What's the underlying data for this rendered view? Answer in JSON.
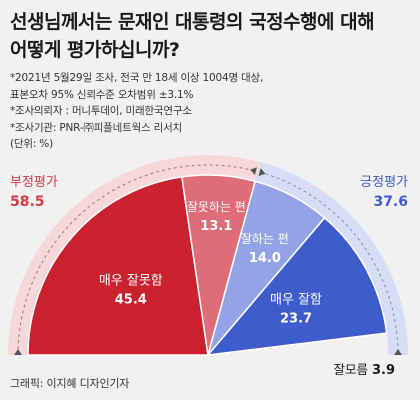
{
  "title_lines": [
    "선생님께서는 문재인 대통령의 국정수행에 대해",
    "어떻게 평가하십니까?"
  ],
  "notes": [
    "*2021년 5월29일 조사, 전국 만 18세 이상 1004명 대상,",
    "표본오차 95% 신뢰수준 오차범위 ±3.1%",
    "*조사의뢰자 : 머니투데이, 미래한국연구소",
    "*조사기관: PNR-㈜피플네트웍스 리서치",
    "(단위: %)"
  ],
  "credit": "그래픽: 이지혜 디자인기자",
  "chart_data": {
    "type": "pie",
    "subtype": "semicircle",
    "unit": "%",
    "slices": [
      {
        "label": "매우 잘못함",
        "value": 45.4,
        "color": "#c9222e"
      },
      {
        "label": "잘못하는 편",
        "value": 13.1,
        "color": "#de6d78"
      },
      {
        "label": "잘하는 편",
        "value": 14.0,
        "color": "#92a4e6"
      },
      {
        "label": "매우 잘함",
        "value": 23.7,
        "color": "#3f5ccd"
      },
      {
        "label": "잘모름",
        "value": 3.9,
        "color": null
      }
    ],
    "groups": [
      {
        "label": "부정평가",
        "value": 58.5,
        "color": "#d63b46"
      },
      {
        "label": "긍정평가",
        "value": 37.6,
        "color": "#3f5ccd"
      }
    ]
  }
}
